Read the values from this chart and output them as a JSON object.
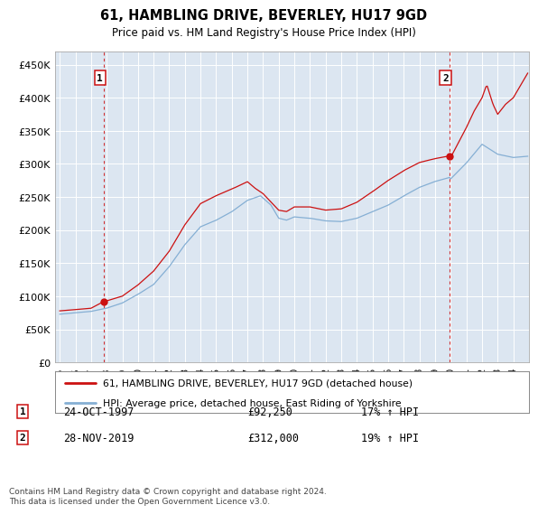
{
  "title": "61, HAMBLING DRIVE, BEVERLEY, HU17 9GD",
  "subtitle": "Price paid vs. HM Land Registry's House Price Index (HPI)",
  "ylabel_ticks": [
    "£0",
    "£50K",
    "£100K",
    "£150K",
    "£200K",
    "£250K",
    "£300K",
    "£350K",
    "£400K",
    "£450K"
  ],
  "ylabel_values": [
    0,
    50000,
    100000,
    150000,
    200000,
    250000,
    300000,
    350000,
    400000,
    450000
  ],
  "ylim": [
    0,
    470000
  ],
  "xlim_start": 1994.7,
  "xlim_end": 2025.0,
  "hpi_color": "#85afd4",
  "price_color": "#cc1111",
  "bg_color": "#dce6f1",
  "grid_color": "#ffffff",
  "sale1": {
    "year": 1997.82,
    "price": 92250,
    "label": "1",
    "date": "24-OCT-1997",
    "change": "17% ↑ HPI"
  },
  "sale2": {
    "year": 2019.92,
    "price": 312000,
    "label": "2",
    "date": "28-NOV-2019",
    "change": "19% ↑ HPI"
  },
  "legend_price": "61, HAMBLING DRIVE, BEVERLEY, HU17 9GD (detached house)",
  "legend_hpi": "HPI: Average price, detached house, East Riding of Yorkshire",
  "footnote": "Contains HM Land Registry data © Crown copyright and database right 2024.\nThis data is licensed under the Open Government Licence v3.0.",
  "xticks": [
    1995,
    1996,
    1997,
    1998,
    1999,
    2000,
    2001,
    2002,
    2003,
    2004,
    2005,
    2006,
    2007,
    2008,
    2009,
    2010,
    2011,
    2012,
    2013,
    2014,
    2015,
    2016,
    2017,
    2018,
    2019,
    2020,
    2021,
    2022,
    2023,
    2024
  ]
}
